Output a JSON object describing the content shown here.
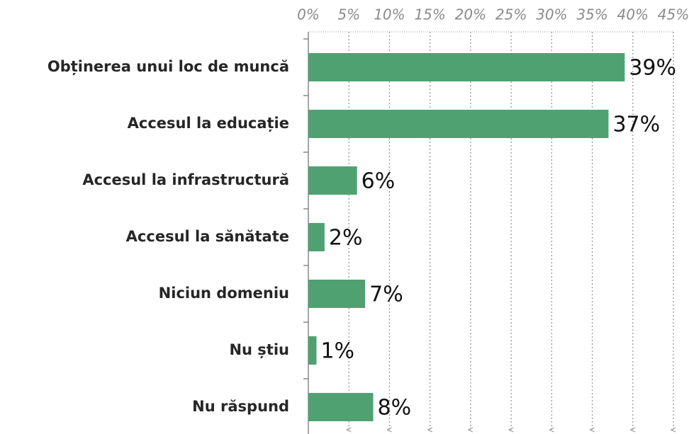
{
  "chart_data": {
    "type": "bar",
    "orientation": "horizontal",
    "categories": [
      "Obținerea unui loc de muncă",
      "Accesul la educație",
      "Accesul la infrastructură",
      "Accesul la sănătate",
      "Niciun domeniu",
      "Nu știu",
      "Nu răspund"
    ],
    "values": [
      39,
      37,
      6,
      2,
      7,
      1,
      8
    ],
    "value_labels": [
      "39%",
      "37%",
      "6%",
      "2%",
      "7%",
      "1%",
      "8%"
    ],
    "color": "#4fa171",
    "xlim": [
      0,
      45
    ],
    "xticks": [
      {
        "value": 0,
        "label": "0%"
      },
      {
        "value": 5,
        "label": "5%"
      },
      {
        "value": 10,
        "label": "10%"
      },
      {
        "value": 15,
        "label": "15%"
      },
      {
        "value": 20,
        "label": "20%"
      },
      {
        "value": 25,
        "label": "25%"
      },
      {
        "value": 30,
        "label": "30%"
      },
      {
        "value": 35,
        "label": "35%"
      },
      {
        "value": 40,
        "label": "40%"
      },
      {
        "value": 45,
        "label": "45%"
      }
    ],
    "grid": true
  }
}
